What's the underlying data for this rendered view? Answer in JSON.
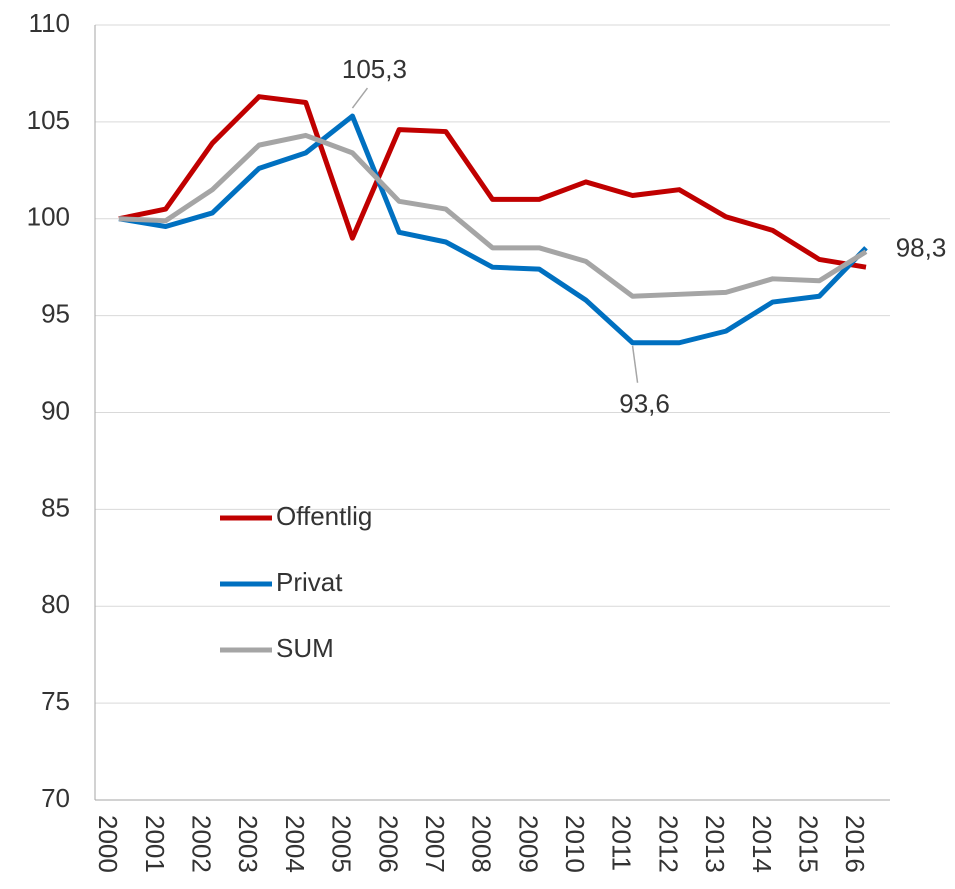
{
  "chart_data": {
    "type": "line",
    "categories": [
      "2000",
      "2001",
      "2002",
      "2003",
      "2004",
      "2005",
      "2006",
      "2007",
      "2008",
      "2009",
      "2010",
      "2011",
      "2012",
      "2013",
      "2014",
      "2015",
      "2016"
    ],
    "series": [
      {
        "name": "Offentlig",
        "color": "#c00000",
        "values": [
          100,
          100.5,
          103.9,
          106.3,
          106.0,
          99.0,
          104.6,
          104.5,
          101.0,
          101.0,
          101.9,
          101.2,
          101.5,
          100.1,
          99.4,
          97.9,
          97.5
        ]
      },
      {
        "name": "Privat",
        "color": "#0070c0",
        "values": [
          100,
          99.6,
          100.3,
          102.6,
          103.4,
          105.3,
          99.3,
          98.8,
          97.5,
          97.4,
          95.8,
          93.6,
          93.6,
          94.2,
          95.7,
          96.0,
          98.5
        ],
        "value_labels": [
          null,
          null,
          null,
          null,
          null,
          "105,3",
          null,
          null,
          null,
          null,
          null,
          "93,6",
          null,
          null,
          null,
          null,
          null
        ]
      },
      {
        "name": "SUM",
        "color": "#a5a5a5",
        "values": [
          100,
          99.9,
          101.5,
          103.8,
          104.3,
          103.4,
          100.9,
          100.5,
          98.5,
          98.5,
          97.8,
          96.0,
          96.1,
          96.2,
          96.9,
          96.8,
          98.3
        ],
        "value_labels": [
          null,
          null,
          null,
          null,
          null,
          null,
          null,
          null,
          null,
          null,
          null,
          null,
          null,
          null,
          null,
          null,
          "98,3"
        ]
      }
    ],
    "ylim": [
      70,
      110
    ],
    "yticks": [
      70,
      75,
      80,
      85,
      90,
      95,
      100,
      105,
      110
    ],
    "grid": true,
    "legend": "left"
  }
}
